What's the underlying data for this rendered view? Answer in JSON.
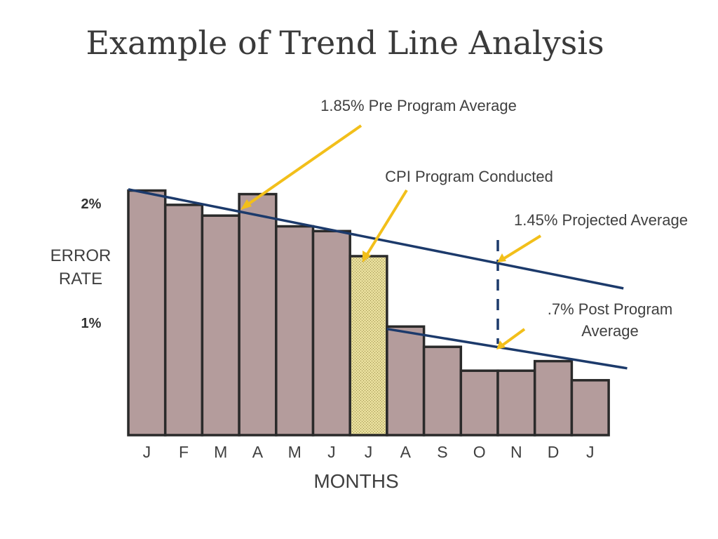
{
  "title": "Example of Trend Line Analysis",
  "annotations": {
    "pre_program": "1.85% Pre Program Average",
    "cpi": "CPI Program Conducted",
    "projected": "1.45% Projected Average",
    "post_line1": ".7% Post Program",
    "post_line2": "Average"
  },
  "colors": {
    "bar_fill": "#b49c9c",
    "bar_stroke": "#2a2a2a",
    "highlight_fill": "#e6dc9a",
    "trend_line": "#1c3a6b",
    "arrow": "#f2bf1a"
  },
  "chart_data": {
    "type": "bar",
    "title": "Example of Trend Line Analysis",
    "xlabel": "MONTHS",
    "ylabel_lines": [
      "ERROR",
      "RATE"
    ],
    "categories": [
      "J",
      "F",
      "M",
      "A",
      "M",
      "J",
      "J",
      "A",
      "S",
      "O",
      "N",
      "D",
      "J"
    ],
    "values": [
      2.05,
      1.93,
      1.84,
      2.02,
      1.75,
      1.71,
      1.5,
      0.91,
      0.74,
      0.54,
      0.54,
      0.62,
      0.46
    ],
    "highlight_index": 6,
    "y_ticks": [
      {
        "value": 2,
        "label": "2%"
      },
      {
        "value": 1,
        "label": "1%"
      }
    ],
    "ylim": [
      0,
      2.15
    ],
    "trend_lines": [
      {
        "x_start": 0,
        "x_end": 13.4,
        "y_start": 2.06,
        "y_end": 1.23
      },
      {
        "x_start": 7,
        "x_end": 13.5,
        "y_start": 0.89,
        "y_end": 0.56
      }
    ],
    "projection_marker_x": 10
  }
}
